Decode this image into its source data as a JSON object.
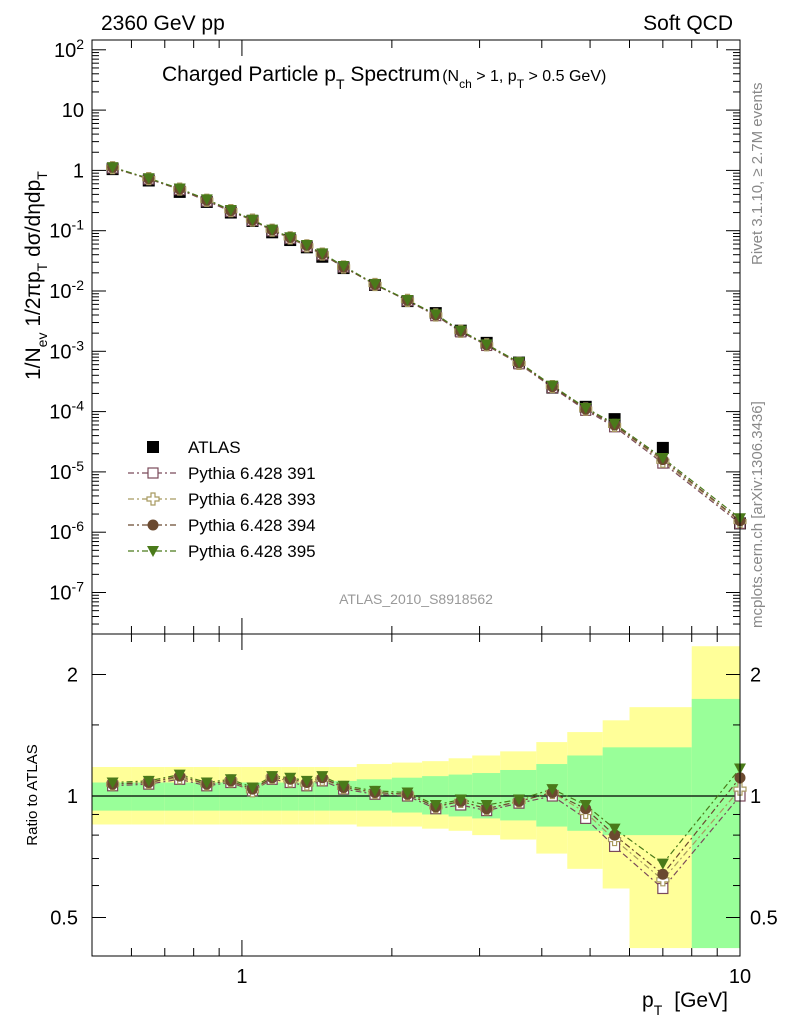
{
  "header": {
    "left": "2360 GeV pp",
    "right": "Soft QCD"
  },
  "side_labels": {
    "rivet": "Rivet 3.1.10, ≥ 2.7M events",
    "mcplots": "mcplots.cern.ch [arXiv:1306.3436]"
  },
  "analysis_id": "ATLAS_2010_S8918562",
  "colors": {
    "atlas": "#000000",
    "p391": "#7a4a5a",
    "p393": "#a89a60",
    "p394": "#6b4a30",
    "p395": "#4a7a1a",
    "band_yellow": "#ffff99",
    "band_green": "#99ff99"
  },
  "chart_data": [
    {
      "type": "scatter",
      "title_main": "Charged Particle p",
      "title_sub": "T",
      "title_main2": " Spectrum",
      "title_cond": "(N",
      "title_cond_sub1": "ch",
      "title_cond2": " > 1, p",
      "title_cond_sub2": "T",
      "title_cond3": " > 0.5 GeV)",
      "ylabel_text": "1/N_ev 1/2πp_T dσ/dηdp_T",
      "xscale": "log",
      "yscale": "log",
      "xlim": [
        0.5,
        10
      ],
      "ylim": [
        3e-08,
        150
      ],
      "y_ticks": [
        "10^2",
        "10",
        "1",
        "10^-1",
        "10^-2",
        "10^-3",
        "10^-4",
        "10^-5",
        "10^-6",
        "10^-7"
      ],
      "x": [
        0.55,
        0.65,
        0.75,
        0.85,
        0.95,
        1.05,
        1.15,
        1.25,
        1.35,
        1.45,
        1.6,
        1.85,
        2.15,
        2.45,
        2.75,
        3.1,
        3.6,
        4.2,
        4.9,
        5.6,
        7.0,
        10.0
      ],
      "series": [
        {
          "name": "ATLAS",
          "marker": "square-filled",
          "values": [
            1.05,
            0.68,
            0.44,
            0.3,
            0.2,
            0.145,
            0.094,
            0.07,
            0.053,
            0.037,
            0.024,
            0.0126,
            0.0068,
            0.0043,
            0.0022,
            0.00138,
            0.00065,
            0.00025,
            0.00012,
            7.5e-05,
            2.5e-05,
            1.4e-06
          ]
        },
        {
          "name": "Pythia 6.428 391",
          "marker": "square-open",
          "values": [
            1.1,
            0.72,
            0.48,
            0.31,
            0.21,
            0.148,
            0.1,
            0.075,
            0.055,
            0.04,
            0.025,
            0.0127,
            0.0069,
            0.0039,
            0.0021,
            0.00125,
            0.00062,
            0.00025,
            0.000105,
            5.6e-05,
            1.4e-05,
            1.4e-06
          ]
        },
        {
          "name": "Pythia 6.428 393",
          "marker": "cross-open",
          "values": [
            1.11,
            0.73,
            0.49,
            0.32,
            0.215,
            0.15,
            0.102,
            0.076,
            0.056,
            0.041,
            0.025,
            0.0128,
            0.007,
            0.004,
            0.00215,
            0.00128,
            0.00063,
            0.00026,
            0.00011,
            5.9e-05,
            1.5e-05,
            1.5e-06
          ]
        },
        {
          "name": "Pythia 6.428 394",
          "marker": "circle-filled",
          "values": [
            1.12,
            0.73,
            0.49,
            0.32,
            0.215,
            0.15,
            0.103,
            0.077,
            0.057,
            0.041,
            0.025,
            0.0128,
            0.007,
            0.004,
            0.00215,
            0.00128,
            0.00064,
            0.00026,
            0.00011,
            6e-05,
            1.6e-05,
            1.55e-06
          ]
        },
        {
          "name": "Pythia 6.428 395",
          "marker": "triangle-down-filled",
          "values": [
            1.13,
            0.74,
            0.5,
            0.33,
            0.22,
            0.152,
            0.104,
            0.078,
            0.058,
            0.042,
            0.026,
            0.013,
            0.0071,
            0.0041,
            0.0022,
            0.0013,
            0.00066,
            0.00027,
            0.000115,
            6.3e-05,
            1.7e-05,
            1.7e-06
          ]
        }
      ],
      "legend_placement": "lower-left"
    },
    {
      "type": "line",
      "ylabel": "Ratio to ATLAS",
      "xlabel_main": "p",
      "xlabel_sub": "T",
      "xlabel_unit": "[GeV]",
      "xscale": "log",
      "yscale": "log",
      "xlim": [
        0.5,
        10
      ],
      "ylim": [
        0.42,
        2.4
      ],
      "y_ticks_left": [
        "2",
        "1",
        "0.5"
      ],
      "y_ticks_right": [
        "2",
        "1",
        "0.5"
      ],
      "x_ticks": [
        "1",
        "10"
      ],
      "reference_line": 1,
      "bands": {
        "edges": [
          0.5,
          0.6,
          0.7,
          0.8,
          0.9,
          1.0,
          1.1,
          1.2,
          1.3,
          1.4,
          1.5,
          1.7,
          2.0,
          2.3,
          2.6,
          2.9,
          3.3,
          3.9,
          4.5,
          5.3,
          6.0,
          8.0,
          10.0
        ],
        "yellow_low": [
          0.85,
          0.85,
          0.85,
          0.85,
          0.85,
          0.85,
          0.85,
          0.85,
          0.85,
          0.85,
          0.85,
          0.84,
          0.84,
          0.83,
          0.82,
          0.8,
          0.78,
          0.72,
          0.66,
          0.59,
          0.42,
          0.42
        ],
        "yellow_high": [
          1.18,
          1.18,
          1.18,
          1.18,
          1.18,
          1.18,
          1.18,
          1.18,
          1.18,
          1.18,
          1.18,
          1.2,
          1.21,
          1.22,
          1.24,
          1.26,
          1.29,
          1.36,
          1.44,
          1.54,
          1.66,
          2.35
        ],
        "green_low": [
          0.92,
          0.92,
          0.92,
          0.92,
          0.92,
          0.92,
          0.92,
          0.92,
          0.92,
          0.92,
          0.92,
          0.92,
          0.91,
          0.9,
          0.89,
          0.88,
          0.87,
          0.84,
          0.82,
          0.8,
          0.8,
          0.42
        ],
        "green_high": [
          1.08,
          1.08,
          1.08,
          1.08,
          1.08,
          1.08,
          1.08,
          1.08,
          1.08,
          1.09,
          1.09,
          1.1,
          1.11,
          1.12,
          1.13,
          1.14,
          1.16,
          1.2,
          1.26,
          1.32,
          1.32,
          1.74
        ]
      },
      "series": [
        {
          "name": "Pythia 6.428 391",
          "values": [
            1.06,
            1.07,
            1.1,
            1.06,
            1.08,
            1.03,
            1.1,
            1.08,
            1.06,
            1.09,
            1.04,
            1.01,
            1.0,
            0.93,
            0.95,
            0.92,
            0.96,
            1.0,
            0.88,
            0.75,
            0.59,
            1.0
          ]
        },
        {
          "name": "Pythia 6.428 393",
          "values": [
            1.07,
            1.08,
            1.11,
            1.07,
            1.09,
            1.03,
            1.11,
            1.09,
            1.07,
            1.1,
            1.05,
            1.02,
            1.01,
            0.94,
            0.97,
            0.93,
            0.97,
            1.02,
            0.91,
            0.78,
            0.62,
            1.04
          ]
        },
        {
          "name": "Pythia 6.428 394",
          "values": [
            1.07,
            1.08,
            1.12,
            1.07,
            1.09,
            1.04,
            1.11,
            1.1,
            1.08,
            1.11,
            1.05,
            1.02,
            1.01,
            0.94,
            0.97,
            0.93,
            0.97,
            1.02,
            0.93,
            0.8,
            0.64,
            1.11
          ]
        },
        {
          "name": "Pythia 6.428 395",
          "values": [
            1.08,
            1.09,
            1.13,
            1.08,
            1.1,
            1.05,
            1.12,
            1.11,
            1.09,
            1.12,
            1.06,
            1.03,
            1.02,
            0.95,
            0.98,
            0.95,
            0.98,
            1.04,
            0.95,
            0.83,
            0.68,
            1.17
          ]
        }
      ]
    }
  ]
}
